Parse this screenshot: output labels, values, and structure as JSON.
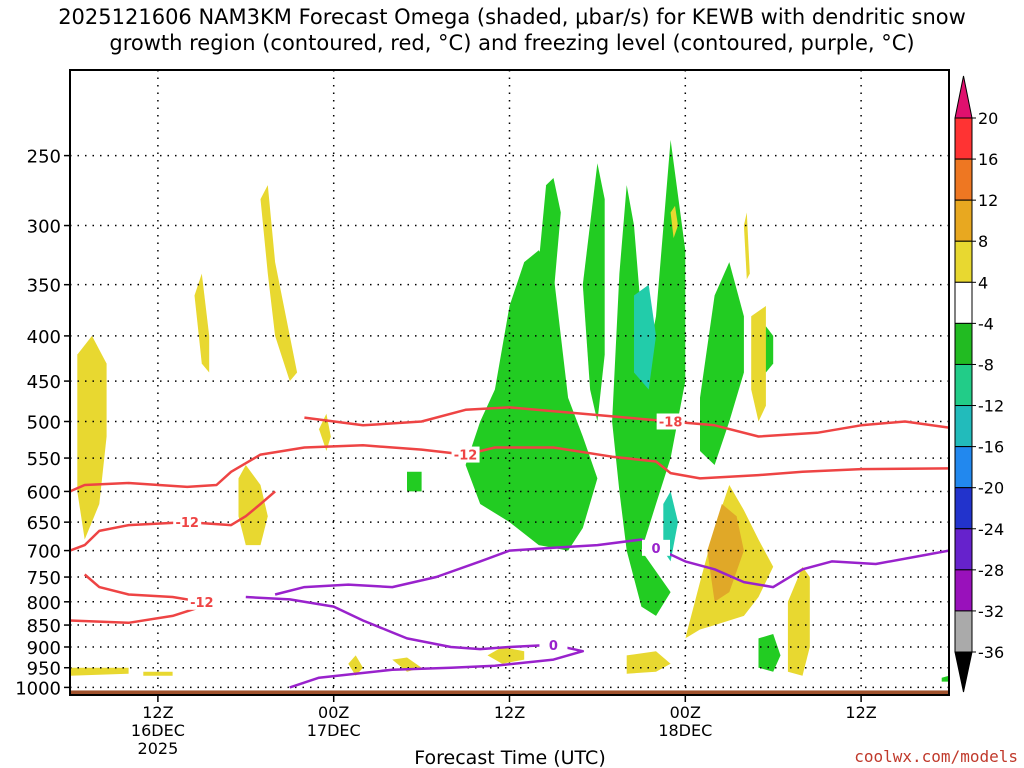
{
  "title_line1": "2025121606 NAM3KM Forecast Omega (shaded, μbar/s) for KEWB with dendritic snow",
  "title_line2": "growth region (contoured, red, °C) and freezing level (contoured, purple, °C)",
  "credit": "coolwx.com/models",
  "chart_data": {
    "type": "time-height cross-section",
    "xlabel": "Forecast Time (UTC)",
    "ylabel": "",
    "x_range_hours": [
      0,
      60
    ],
    "y_range_hpa": [
      1020,
      200
    ],
    "x_ticks": [
      {
        "hour": 6,
        "line1": "12Z",
        "line2": "16DEC",
        "line3": "2025"
      },
      {
        "hour": 18,
        "line1": "00Z",
        "line2": "17DEC",
        "line3": ""
      },
      {
        "hour": 30,
        "line1": "12Z",
        "line2": "",
        "line3": ""
      },
      {
        "hour": 42,
        "line1": "00Z",
        "line2": "18DEC",
        "line3": ""
      },
      {
        "hour": 54,
        "line1": "12Z",
        "line2": "",
        "line3": ""
      }
    ],
    "y_ticks": [
      250,
      300,
      350,
      400,
      450,
      500,
      550,
      600,
      650,
      700,
      750,
      800,
      850,
      900,
      950,
      1000
    ],
    "grid": true,
    "colorbar": {
      "labels": [
        "20",
        "16",
        "12",
        "8",
        "4",
        "-4",
        "-8",
        "-12",
        "-16",
        "-20",
        "-24",
        "-28",
        "-32",
        "-36"
      ],
      "colors": [
        "#ff3333",
        "#ee7722",
        "#e8a820",
        "#e8d830",
        "#ffffff",
        "#22bb22",
        "#22cc88",
        "#22bbbb",
        "#2288ee",
        "#2233cc",
        "#6622cc",
        "#9911bb",
        "#aaaaaa"
      ],
      "top_color": "#e0106e",
      "bottom_color": "#000000"
    },
    "colors": {
      "up_omega": "#22cc22",
      "up_omega_strong": "#22ccaa",
      "down_omega": "#e8d830",
      "down_omega_strong": "#e0a828",
      "dgz": "#ee4444",
      "freezing": "#9922cc",
      "terrain": "#a0522d"
    },
    "series": [
      {
        "name": "-12",
        "color": "#ee4444",
        "points": [
          [
            0,
            600
          ],
          [
            1,
            590
          ],
          [
            4,
            587
          ],
          [
            8,
            593
          ],
          [
            10,
            590
          ],
          [
            11,
            570
          ],
          [
            13,
            545
          ],
          [
            16,
            535
          ],
          [
            20,
            532
          ],
          [
            24,
            538
          ],
          [
            27,
            545
          ],
          [
            29,
            535
          ],
          [
            33,
            535
          ],
          [
            37,
            548
          ],
          [
            40,
            555
          ],
          [
            41,
            572
          ],
          [
            43,
            580
          ],
          [
            47,
            575
          ],
          [
            50,
            570
          ],
          [
            54,
            566
          ],
          [
            60,
            565
          ]
        ]
      },
      {
        "name": "-12",
        "color": "#ee4444",
        "points": [
          [
            0,
            700
          ],
          [
            1,
            690
          ],
          [
            2,
            665
          ],
          [
            4,
            655
          ],
          [
            8,
            650
          ],
          [
            11,
            655
          ],
          [
            12,
            640
          ],
          [
            13,
            620
          ],
          [
            14,
            600
          ]
        ]
      },
      {
        "name": "-12",
        "color": "#ee4444",
        "points": [
          [
            0,
            840
          ],
          [
            4,
            845
          ],
          [
            7,
            830
          ],
          [
            9,
            810
          ],
          [
            9,
            800
          ],
          [
            7,
            790
          ],
          [
            4,
            785
          ],
          [
            2,
            770
          ],
          [
            1,
            745
          ]
        ]
      },
      {
        "name": "-18",
        "color": "#ee4444",
        "points": [
          [
            16,
            495
          ],
          [
            20,
            505
          ],
          [
            24,
            500
          ],
          [
            27,
            485
          ],
          [
            30,
            482
          ],
          [
            35,
            490
          ],
          [
            38,
            495
          ],
          [
            41,
            500
          ],
          [
            44,
            505
          ],
          [
            47,
            520
          ],
          [
            51,
            515
          ],
          [
            54,
            505
          ],
          [
            57,
            500
          ],
          [
            60,
            508
          ]
        ]
      },
      {
        "name": "0",
        "color": "#9922cc",
        "points": [
          [
            14,
            785
          ],
          [
            16,
            770
          ],
          [
            19,
            765
          ],
          [
            22,
            770
          ],
          [
            25,
            750
          ],
          [
            28,
            720
          ],
          [
            30,
            700
          ],
          [
            33,
            695
          ],
          [
            36,
            690
          ],
          [
            39,
            680
          ],
          [
            40,
            695
          ],
          [
            42,
            720
          ],
          [
            44,
            735
          ],
          [
            46,
            760
          ],
          [
            48,
            770
          ],
          [
            50,
            735
          ],
          [
            52,
            720
          ],
          [
            55,
            725
          ],
          [
            58,
            710
          ],
          [
            60,
            700
          ]
        ]
      },
      {
        "name": "0",
        "color": "#9922cc",
        "points": [
          [
            12,
            790
          ],
          [
            15,
            795
          ],
          [
            18,
            810
          ],
          [
            20,
            840
          ],
          [
            23,
            880
          ],
          [
            26,
            900
          ],
          [
            28,
            905
          ],
          [
            30,
            900
          ],
          [
            33,
            895
          ],
          [
            35,
            910
          ],
          [
            33,
            930
          ],
          [
            29,
            945
          ],
          [
            26,
            950
          ],
          [
            22,
            955
          ],
          [
            17,
            975
          ],
          [
            15,
            1000
          ]
        ]
      }
    ]
  }
}
